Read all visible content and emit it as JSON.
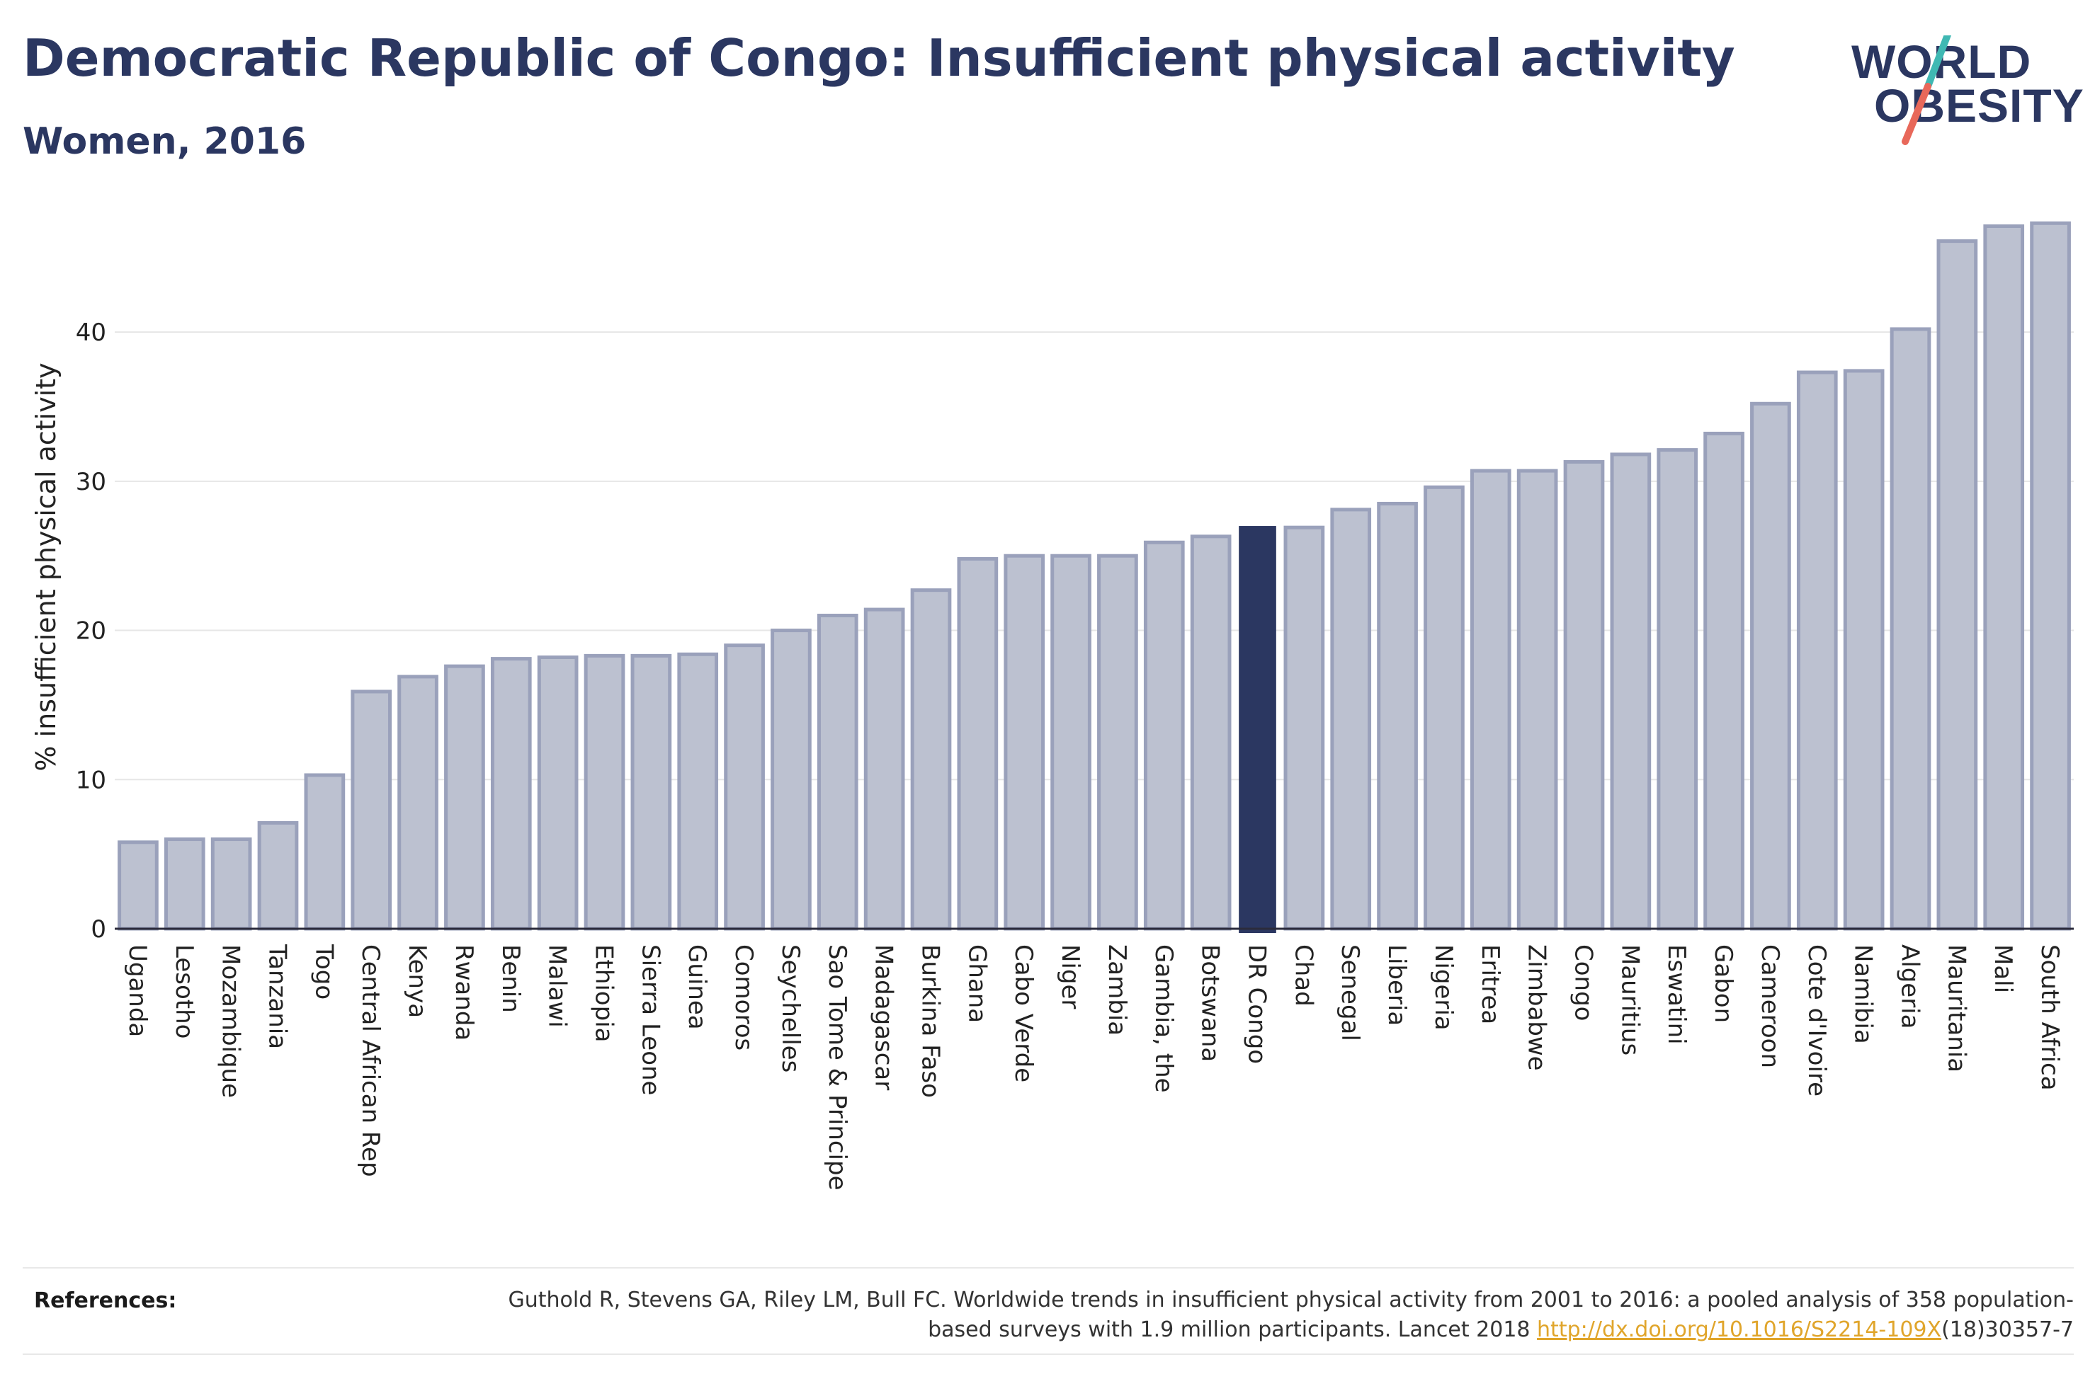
{
  "header": {
    "title": "Democratic Republic of Congo: Insufficient physical activity",
    "subtitle": "Women, 2016"
  },
  "logo": {
    "line1": "WORLD",
    "line2": "OBESITY",
    "colors": {
      "text": "#2b3761",
      "slash_top": "#3fb8b3",
      "slash_bottom": "#e8685a"
    }
  },
  "colors": {
    "bar_fill": "#bcc1d0",
    "bar_stroke": "#9aa1bb",
    "highlight": "#2b3761",
    "grid": "#e6e6e6",
    "axis": "#2b2b3b"
  },
  "chart_data": {
    "type": "bar",
    "ylabel": "% insufficient physical activity",
    "ylim": [
      0,
      48.5
    ],
    "yticks": [
      0,
      10,
      20,
      30,
      40
    ],
    "grid": true,
    "highlight_category": "DR Congo",
    "categories": [
      "Uganda",
      "Lesotho",
      "Mozambique",
      "Tanzania",
      "Togo",
      "Central African Rep",
      "Kenya",
      "Rwanda",
      "Benin",
      "Malawi",
      "Ethiopia",
      "Sierra Leone",
      "Guinea",
      "Comoros",
      "Seychelles",
      "Sao Tome & Principe",
      "Madagascar",
      "Burkina Faso",
      "Ghana",
      "Cabo Verde",
      "Niger",
      "Zambia",
      "Gambia, the",
      "Botswana",
      "DR Congo",
      "Chad",
      "Senegal",
      "Liberia",
      "Nigeria",
      "Eritrea",
      "Zimbabwe",
      "Congo",
      "Mauritius",
      "Eswatini",
      "Gabon",
      "Cameroon",
      "Cote d'Ivoire",
      "Namibia",
      "Algeria",
      "Mauritania",
      "Mali",
      "South Africa"
    ],
    "values": [
      5.8,
      6.0,
      6.0,
      7.1,
      10.3,
      15.9,
      16.9,
      17.6,
      18.1,
      18.2,
      18.3,
      18.3,
      18.4,
      19.0,
      20.0,
      21.0,
      21.4,
      22.7,
      24.8,
      25.0,
      25.0,
      25.0,
      25.9,
      26.3,
      27.0,
      26.9,
      28.1,
      28.5,
      29.6,
      30.7,
      30.7,
      31.3,
      31.8,
      32.1,
      33.2,
      35.2,
      37.3,
      37.4,
      40.2,
      46.1,
      47.1,
      47.3
    ]
  },
  "references": {
    "label": "References:",
    "text_before": "Guthold R, Stevens GA, Riley LM, Bull FC. Worldwide trends in insufficient physical activity from 2001 to 2016: a pooled analysis of 358 population-based surveys with 1.9 million participants. Lancet 2018 ",
    "link": "http://dx.doi.org/10.1016/S2214-109X",
    "text_after": "(18)30357-7"
  }
}
